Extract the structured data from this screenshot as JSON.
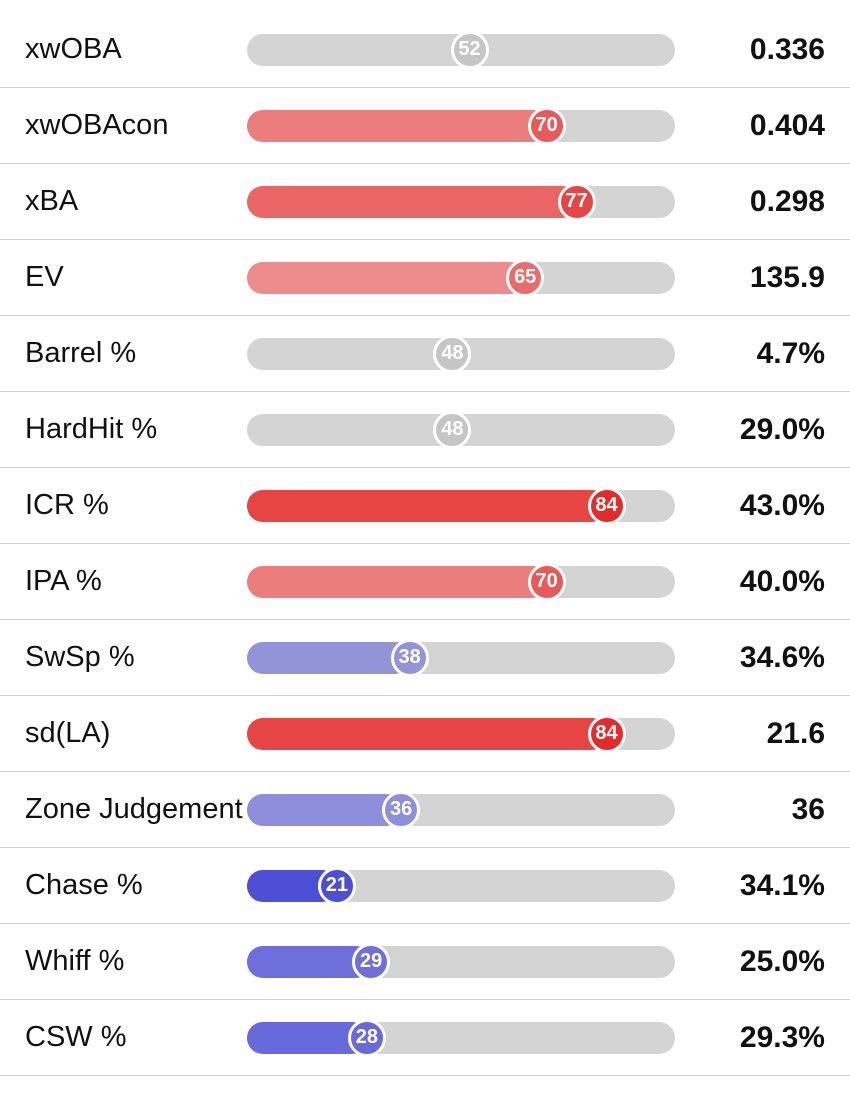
{
  "chart": {
    "type": "percentile-bars",
    "background_color": "#ffffff",
    "track_color": "#d4d4d4",
    "divider_color": "#d0d0d0",
    "label_fontsize": 29,
    "value_fontsize": 30,
    "marker_fontsize": 20,
    "marker_border_color": "#ffffff",
    "metrics": [
      {
        "label": "xwOBA",
        "percentile": 52,
        "value": "0.336",
        "fill_color": "#d4d4d4",
        "marker_color": "#c5c5c5"
      },
      {
        "label": "xwOBAcon",
        "percentile": 70,
        "value": "0.404",
        "fill_color": "#eb7d7d",
        "marker_color": "#e85a5a"
      },
      {
        "label": "xBA",
        "percentile": 77,
        "value": "0.298",
        "fill_color": "#ea6565",
        "marker_color": "#e64545"
      },
      {
        "label": "EV",
        "percentile": 65,
        "value": "135.9",
        "fill_color": "#ec8c8c",
        "marker_color": "#e96c6c"
      },
      {
        "label": "Barrel %",
        "percentile": 48,
        "value": "4.7%",
        "fill_color": "#d4d4d4",
        "marker_color": "#c5c5c5"
      },
      {
        "label": "HardHit %",
        "percentile": 48,
        "value": "29.0%",
        "fill_color": "#d4d4d4",
        "marker_color": "#c5c5c5"
      },
      {
        "label": "ICR %",
        "percentile": 84,
        "value": "43.0%",
        "fill_color": "#e74444",
        "marker_color": "#e22c2c"
      },
      {
        "label": "IPA %",
        "percentile": 70,
        "value": "40.0%",
        "fill_color": "#eb7d7d",
        "marker_color": "#e85a5a"
      },
      {
        "label": "SwSp %",
        "percentile": 38,
        "value": "34.6%",
        "fill_color": "#9394d8",
        "marker_color": "#9394d8"
      },
      {
        "label": "sd(LA)",
        "percentile": 84,
        "value": "21.6",
        "fill_color": "#e74444",
        "marker_color": "#e22c2c"
      },
      {
        "label": "Zone Judgement",
        "percentile": 36,
        "value": "36",
        "fill_color": "#8d8edc",
        "marker_color": "#8d8edc"
      },
      {
        "label": "Chase %",
        "percentile": 21,
        "value": "34.1%",
        "fill_color": "#4c4ed6",
        "marker_color": "#4c4ed6"
      },
      {
        "label": "Whiff %",
        "percentile": 29,
        "value": "25.0%",
        "fill_color": "#6e6fdb",
        "marker_color": "#6e6fdb"
      },
      {
        "label": "CSW %",
        "percentile": 28,
        "value": "29.3%",
        "fill_color": "#6869db",
        "marker_color": "#6869db"
      }
    ]
  }
}
